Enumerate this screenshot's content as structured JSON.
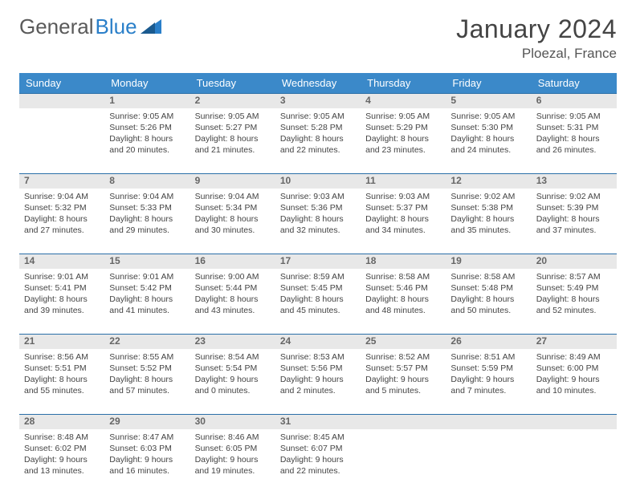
{
  "logo": {
    "text1": "General",
    "text2": "Blue",
    "brand_color": "#2a7fc9"
  },
  "title": "January 2024",
  "location": "Ploezal, France",
  "day_headers": [
    "Sunday",
    "Monday",
    "Tuesday",
    "Wednesday",
    "Thursday",
    "Friday",
    "Saturday"
  ],
  "header_bg": "#3b89c9",
  "border_color": "#2a6fa8",
  "daynum_bg": "#e8e8e8",
  "weeks": [
    {
      "nums": [
        "",
        "1",
        "2",
        "3",
        "4",
        "5",
        "6"
      ],
      "cells": [
        {},
        {
          "sr": "Sunrise: 9:05 AM",
          "ss": "Sunset: 5:26 PM",
          "d1": "Daylight: 8 hours",
          "d2": "and 20 minutes."
        },
        {
          "sr": "Sunrise: 9:05 AM",
          "ss": "Sunset: 5:27 PM",
          "d1": "Daylight: 8 hours",
          "d2": "and 21 minutes."
        },
        {
          "sr": "Sunrise: 9:05 AM",
          "ss": "Sunset: 5:28 PM",
          "d1": "Daylight: 8 hours",
          "d2": "and 22 minutes."
        },
        {
          "sr": "Sunrise: 9:05 AM",
          "ss": "Sunset: 5:29 PM",
          "d1": "Daylight: 8 hours",
          "d2": "and 23 minutes."
        },
        {
          "sr": "Sunrise: 9:05 AM",
          "ss": "Sunset: 5:30 PM",
          "d1": "Daylight: 8 hours",
          "d2": "and 24 minutes."
        },
        {
          "sr": "Sunrise: 9:05 AM",
          "ss": "Sunset: 5:31 PM",
          "d1": "Daylight: 8 hours",
          "d2": "and 26 minutes."
        }
      ]
    },
    {
      "nums": [
        "7",
        "8",
        "9",
        "10",
        "11",
        "12",
        "13"
      ],
      "cells": [
        {
          "sr": "Sunrise: 9:04 AM",
          "ss": "Sunset: 5:32 PM",
          "d1": "Daylight: 8 hours",
          "d2": "and 27 minutes."
        },
        {
          "sr": "Sunrise: 9:04 AM",
          "ss": "Sunset: 5:33 PM",
          "d1": "Daylight: 8 hours",
          "d2": "and 29 minutes."
        },
        {
          "sr": "Sunrise: 9:04 AM",
          "ss": "Sunset: 5:34 PM",
          "d1": "Daylight: 8 hours",
          "d2": "and 30 minutes."
        },
        {
          "sr": "Sunrise: 9:03 AM",
          "ss": "Sunset: 5:36 PM",
          "d1": "Daylight: 8 hours",
          "d2": "and 32 minutes."
        },
        {
          "sr": "Sunrise: 9:03 AM",
          "ss": "Sunset: 5:37 PM",
          "d1": "Daylight: 8 hours",
          "d2": "and 34 minutes."
        },
        {
          "sr": "Sunrise: 9:02 AM",
          "ss": "Sunset: 5:38 PM",
          "d1": "Daylight: 8 hours",
          "d2": "and 35 minutes."
        },
        {
          "sr": "Sunrise: 9:02 AM",
          "ss": "Sunset: 5:39 PM",
          "d1": "Daylight: 8 hours",
          "d2": "and 37 minutes."
        }
      ]
    },
    {
      "nums": [
        "14",
        "15",
        "16",
        "17",
        "18",
        "19",
        "20"
      ],
      "cells": [
        {
          "sr": "Sunrise: 9:01 AM",
          "ss": "Sunset: 5:41 PM",
          "d1": "Daylight: 8 hours",
          "d2": "and 39 minutes."
        },
        {
          "sr": "Sunrise: 9:01 AM",
          "ss": "Sunset: 5:42 PM",
          "d1": "Daylight: 8 hours",
          "d2": "and 41 minutes."
        },
        {
          "sr": "Sunrise: 9:00 AM",
          "ss": "Sunset: 5:44 PM",
          "d1": "Daylight: 8 hours",
          "d2": "and 43 minutes."
        },
        {
          "sr": "Sunrise: 8:59 AM",
          "ss": "Sunset: 5:45 PM",
          "d1": "Daylight: 8 hours",
          "d2": "and 45 minutes."
        },
        {
          "sr": "Sunrise: 8:58 AM",
          "ss": "Sunset: 5:46 PM",
          "d1": "Daylight: 8 hours",
          "d2": "and 48 minutes."
        },
        {
          "sr": "Sunrise: 8:58 AM",
          "ss": "Sunset: 5:48 PM",
          "d1": "Daylight: 8 hours",
          "d2": "and 50 minutes."
        },
        {
          "sr": "Sunrise: 8:57 AM",
          "ss": "Sunset: 5:49 PM",
          "d1": "Daylight: 8 hours",
          "d2": "and 52 minutes."
        }
      ]
    },
    {
      "nums": [
        "21",
        "22",
        "23",
        "24",
        "25",
        "26",
        "27"
      ],
      "cells": [
        {
          "sr": "Sunrise: 8:56 AM",
          "ss": "Sunset: 5:51 PM",
          "d1": "Daylight: 8 hours",
          "d2": "and 55 minutes."
        },
        {
          "sr": "Sunrise: 8:55 AM",
          "ss": "Sunset: 5:52 PM",
          "d1": "Daylight: 8 hours",
          "d2": "and 57 minutes."
        },
        {
          "sr": "Sunrise: 8:54 AM",
          "ss": "Sunset: 5:54 PM",
          "d1": "Daylight: 9 hours",
          "d2": "and 0 minutes."
        },
        {
          "sr": "Sunrise: 8:53 AM",
          "ss": "Sunset: 5:56 PM",
          "d1": "Daylight: 9 hours",
          "d2": "and 2 minutes."
        },
        {
          "sr": "Sunrise: 8:52 AM",
          "ss": "Sunset: 5:57 PM",
          "d1": "Daylight: 9 hours",
          "d2": "and 5 minutes."
        },
        {
          "sr": "Sunrise: 8:51 AM",
          "ss": "Sunset: 5:59 PM",
          "d1": "Daylight: 9 hours",
          "d2": "and 7 minutes."
        },
        {
          "sr": "Sunrise: 8:49 AM",
          "ss": "Sunset: 6:00 PM",
          "d1": "Daylight: 9 hours",
          "d2": "and 10 minutes."
        }
      ]
    },
    {
      "nums": [
        "28",
        "29",
        "30",
        "31",
        "",
        "",
        ""
      ],
      "cells": [
        {
          "sr": "Sunrise: 8:48 AM",
          "ss": "Sunset: 6:02 PM",
          "d1": "Daylight: 9 hours",
          "d2": "and 13 minutes."
        },
        {
          "sr": "Sunrise: 8:47 AM",
          "ss": "Sunset: 6:03 PM",
          "d1": "Daylight: 9 hours",
          "d2": "and 16 minutes."
        },
        {
          "sr": "Sunrise: 8:46 AM",
          "ss": "Sunset: 6:05 PM",
          "d1": "Daylight: 9 hours",
          "d2": "and 19 minutes."
        },
        {
          "sr": "Sunrise: 8:45 AM",
          "ss": "Sunset: 6:07 PM",
          "d1": "Daylight: 9 hours",
          "d2": "and 22 minutes."
        },
        {},
        {},
        {}
      ]
    }
  ]
}
